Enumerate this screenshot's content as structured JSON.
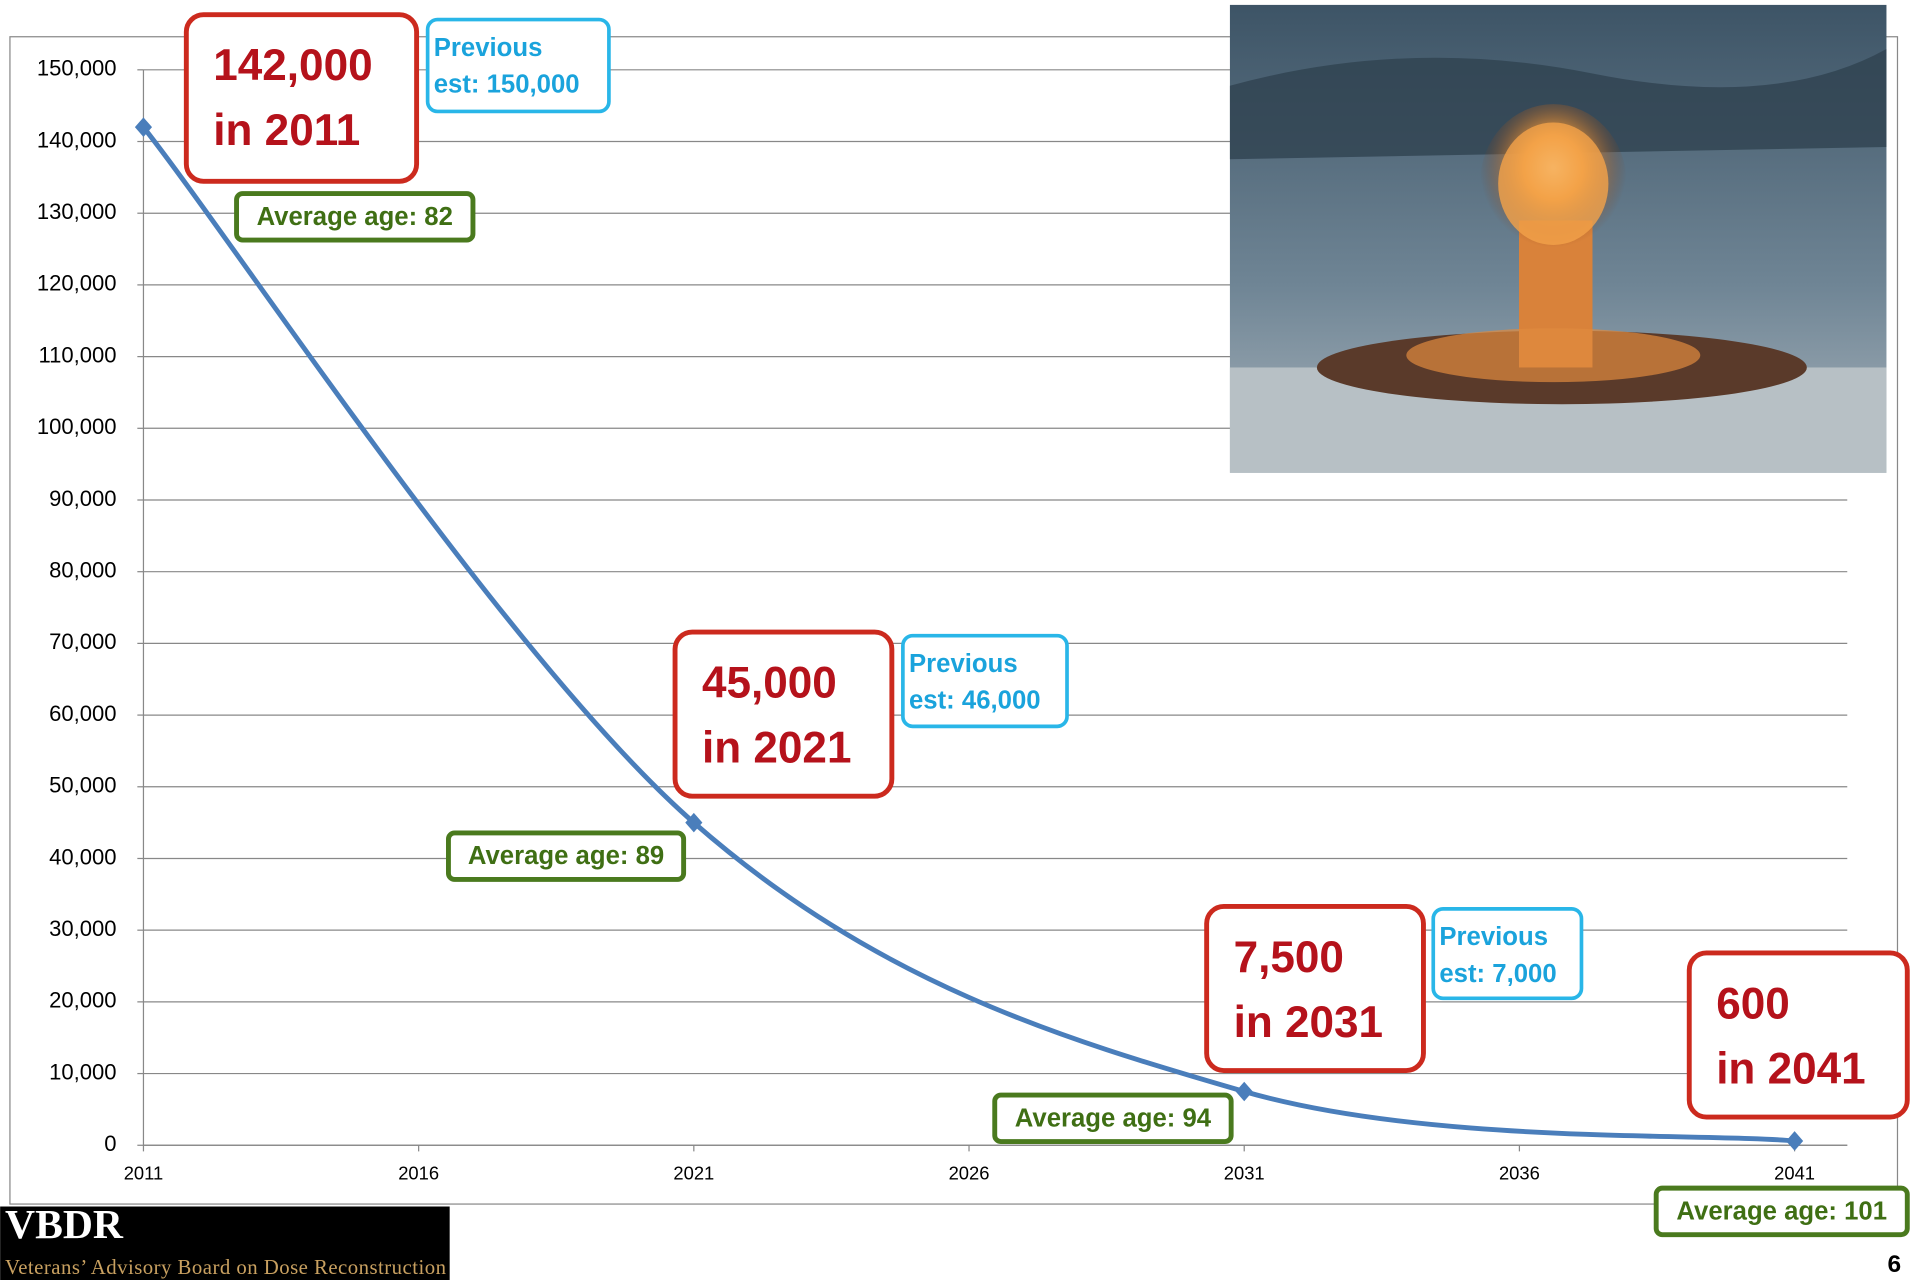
{
  "chart_data": {
    "type": "line",
    "x": [
      2011,
      2021,
      2031,
      2041
    ],
    "series": [
      {
        "color": "#4a7ebb",
        "values": [
          142000,
          45000,
          7500,
          600
        ]
      }
    ],
    "xlim": [
      2011,
      2041
    ],
    "xticks": [
      2011,
      2016,
      2021,
      2026,
      2031,
      2036,
      2041
    ],
    "ylim": [
      0,
      150000
    ],
    "yticks": [
      0,
      {
        "value": 10000,
        "label": "10,000"
      },
      {
        "value": 20000,
        "label": "20,000"
      },
      {
        "value": 30000,
        "label": "30,000"
      },
      {
        "value": 40000,
        "label": "40,000"
      },
      {
        "value": 50000,
        "label": "50,000"
      },
      {
        "value": 60000,
        "label": "60,000"
      },
      {
        "value": 70000,
        "label": "70,000"
      },
      {
        "value": 80000,
        "label": "80,000"
      },
      {
        "value": 90000,
        "label": "90,000"
      },
      {
        "value": 100000,
        "label": "100,000"
      },
      {
        "value": 110000,
        "label": "110,000"
      },
      {
        "value": 120000,
        "label": "120,000"
      },
      {
        "value": 130000,
        "label": "130,000"
      },
      {
        "value": 140000,
        "label": "140,000"
      },
      {
        "value": 150000,
        "label": "150,000"
      }
    ],
    "grid": true,
    "count_labels": [
      [
        "142,000",
        "in 2011"
      ],
      [
        "45,000",
        "in 2021"
      ],
      [
        "7,500",
        "in 2031"
      ],
      [
        "600",
        "in 2041"
      ]
    ],
    "previous_labels": [
      [
        "Previous",
        "est:  150,000"
      ],
      [
        "Previous",
        "est:  46,000"
      ],
      [
        "Previous",
        "est:  7,000"
      ]
    ],
    "age_labels": [
      "Average age:  82",
      "Average age:  89",
      "Average age:  94",
      "Average age:  101"
    ]
  },
  "footer": {
    "logo": "VBDR",
    "organization": "Veterans’ Advisory Board on Dose Reconstruction",
    "page_number": "6"
  }
}
